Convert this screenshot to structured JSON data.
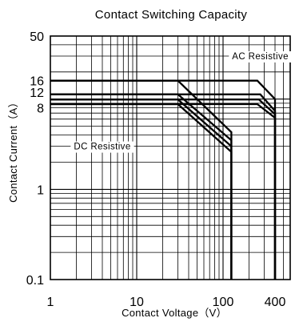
{
  "chart_data": {
    "type": "line",
    "title": "Contact Switching Capacity",
    "xlabel": "Contact Voltage（V）",
    "ylabel": "Contact Current（A）",
    "x_scale": "log",
    "y_scale": "log",
    "xlim": [
      1,
      600
    ],
    "ylim": [
      0.1,
      50
    ],
    "grid": true,
    "x_ticks": [
      {
        "value": 1,
        "label": "1"
      },
      {
        "value": 10,
        "label": "10"
      },
      {
        "value": 100,
        "label": "100"
      },
      {
        "value": 400,
        "label": "400"
      }
    ],
    "y_ticks": [
      {
        "value": 0.1,
        "label": "0.1"
      },
      {
        "value": 1,
        "label": "1"
      },
      {
        "value": 8,
        "label": "8"
      },
      {
        "value": 12,
        "label": "12"
      },
      {
        "value": 16,
        "label": "16"
      },
      {
        "value": 50,
        "label": "50"
      }
    ],
    "annotations": [
      {
        "text": "AC Resistive",
        "at": [
          270,
          30
        ]
      },
      {
        "text": "DC Resistive",
        "at": [
          4,
          3
        ]
      }
    ],
    "series": [
      {
        "name": "AC Resistive",
        "points": [
          [
            1,
            16
          ],
          [
            250,
            16
          ],
          [
            400,
            10
          ],
          [
            400,
            0.1
          ]
        ]
      },
      {
        "values": [
          [
            1,
            11.3
          ],
          [
            270,
            11.3
          ],
          [
            400,
            7.4
          ],
          [
            400,
            0.1
          ]
        ]
      },
      {
        "values": [
          [
            1,
            9.9
          ],
          [
            260,
            9.9
          ],
          [
            400,
            6.8
          ],
          [
            400,
            0.1
          ]
        ]
      },
      {
        "values": [
          [
            1,
            8.8
          ],
          [
            250,
            8.8
          ],
          [
            400,
            6.2
          ],
          [
            400,
            0.1
          ]
        ]
      },
      {
        "name": "DC Resistive",
        "points": [
          [
            1,
            16
          ],
          [
            30,
            16
          ],
          [
            125,
            4.3
          ],
          [
            125,
            0.1
          ]
        ]
      },
      {
        "values": [
          [
            1,
            11.3
          ],
          [
            30,
            11.3
          ],
          [
            125,
            3.5
          ],
          [
            125,
            0.1
          ]
        ]
      },
      {
        "values": [
          [
            1,
            9.9
          ],
          [
            30,
            9.9
          ],
          [
            125,
            3.0
          ],
          [
            125,
            0.1
          ]
        ]
      },
      {
        "values": [
          [
            1,
            8.8
          ],
          [
            30,
            8.8
          ],
          [
            125,
            2.6
          ],
          [
            125,
            0.1
          ]
        ]
      }
    ]
  }
}
